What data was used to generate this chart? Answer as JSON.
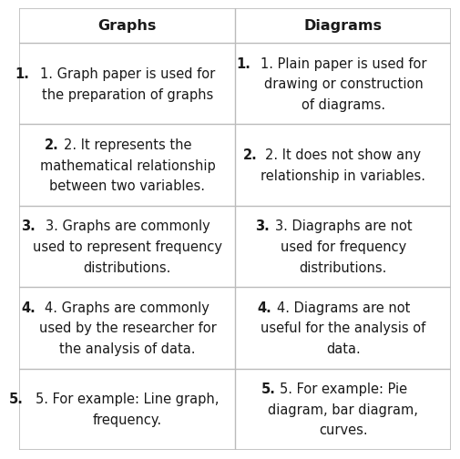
{
  "col1_header": "Graphs",
  "col2_header": "Diagrams",
  "rows": [
    {
      "left_bold": "1.",
      "left_rest": " Graph paper is used for\nthe preparation of graphs",
      "right_bold": "1.",
      "right_rest": " Plain paper is used for\ndrawing or construction\nof diagrams."
    },
    {
      "left_bold": "2.",
      "left_rest": " It represents the\nmathematical relationship\nbetween two variables.",
      "right_bold": "2.",
      "right_rest": " It does not show any\nrelationship in variables."
    },
    {
      "left_bold": "3.",
      "left_rest": " Graphs are commonly\nused to represent frequency\ndistributions.",
      "right_bold": "3.",
      "right_rest": " Diagraphs are not\nused for frequency\ndistributions."
    },
    {
      "left_bold": "4.",
      "left_rest": " Graphs are commonly\nused by the researcher for\nthe analysis of data.",
      "right_bold": "4.",
      "right_rest": " Diagrams are not\nuseful for the analysis of\ndata."
    },
    {
      "left_bold": "5.",
      "left_rest": " For example: Line graph,\nfrequency.",
      "right_bold": "5.",
      "right_rest": " For example: Pie\ndiagram, bar diagram,\ncurves."
    }
  ],
  "bg_color": "#ffffff",
  "line_color": "#bbbbbb",
  "text_color": "#1a1a1a",
  "header_fontsize": 11.5,
  "cell_fontsize": 10.5
}
